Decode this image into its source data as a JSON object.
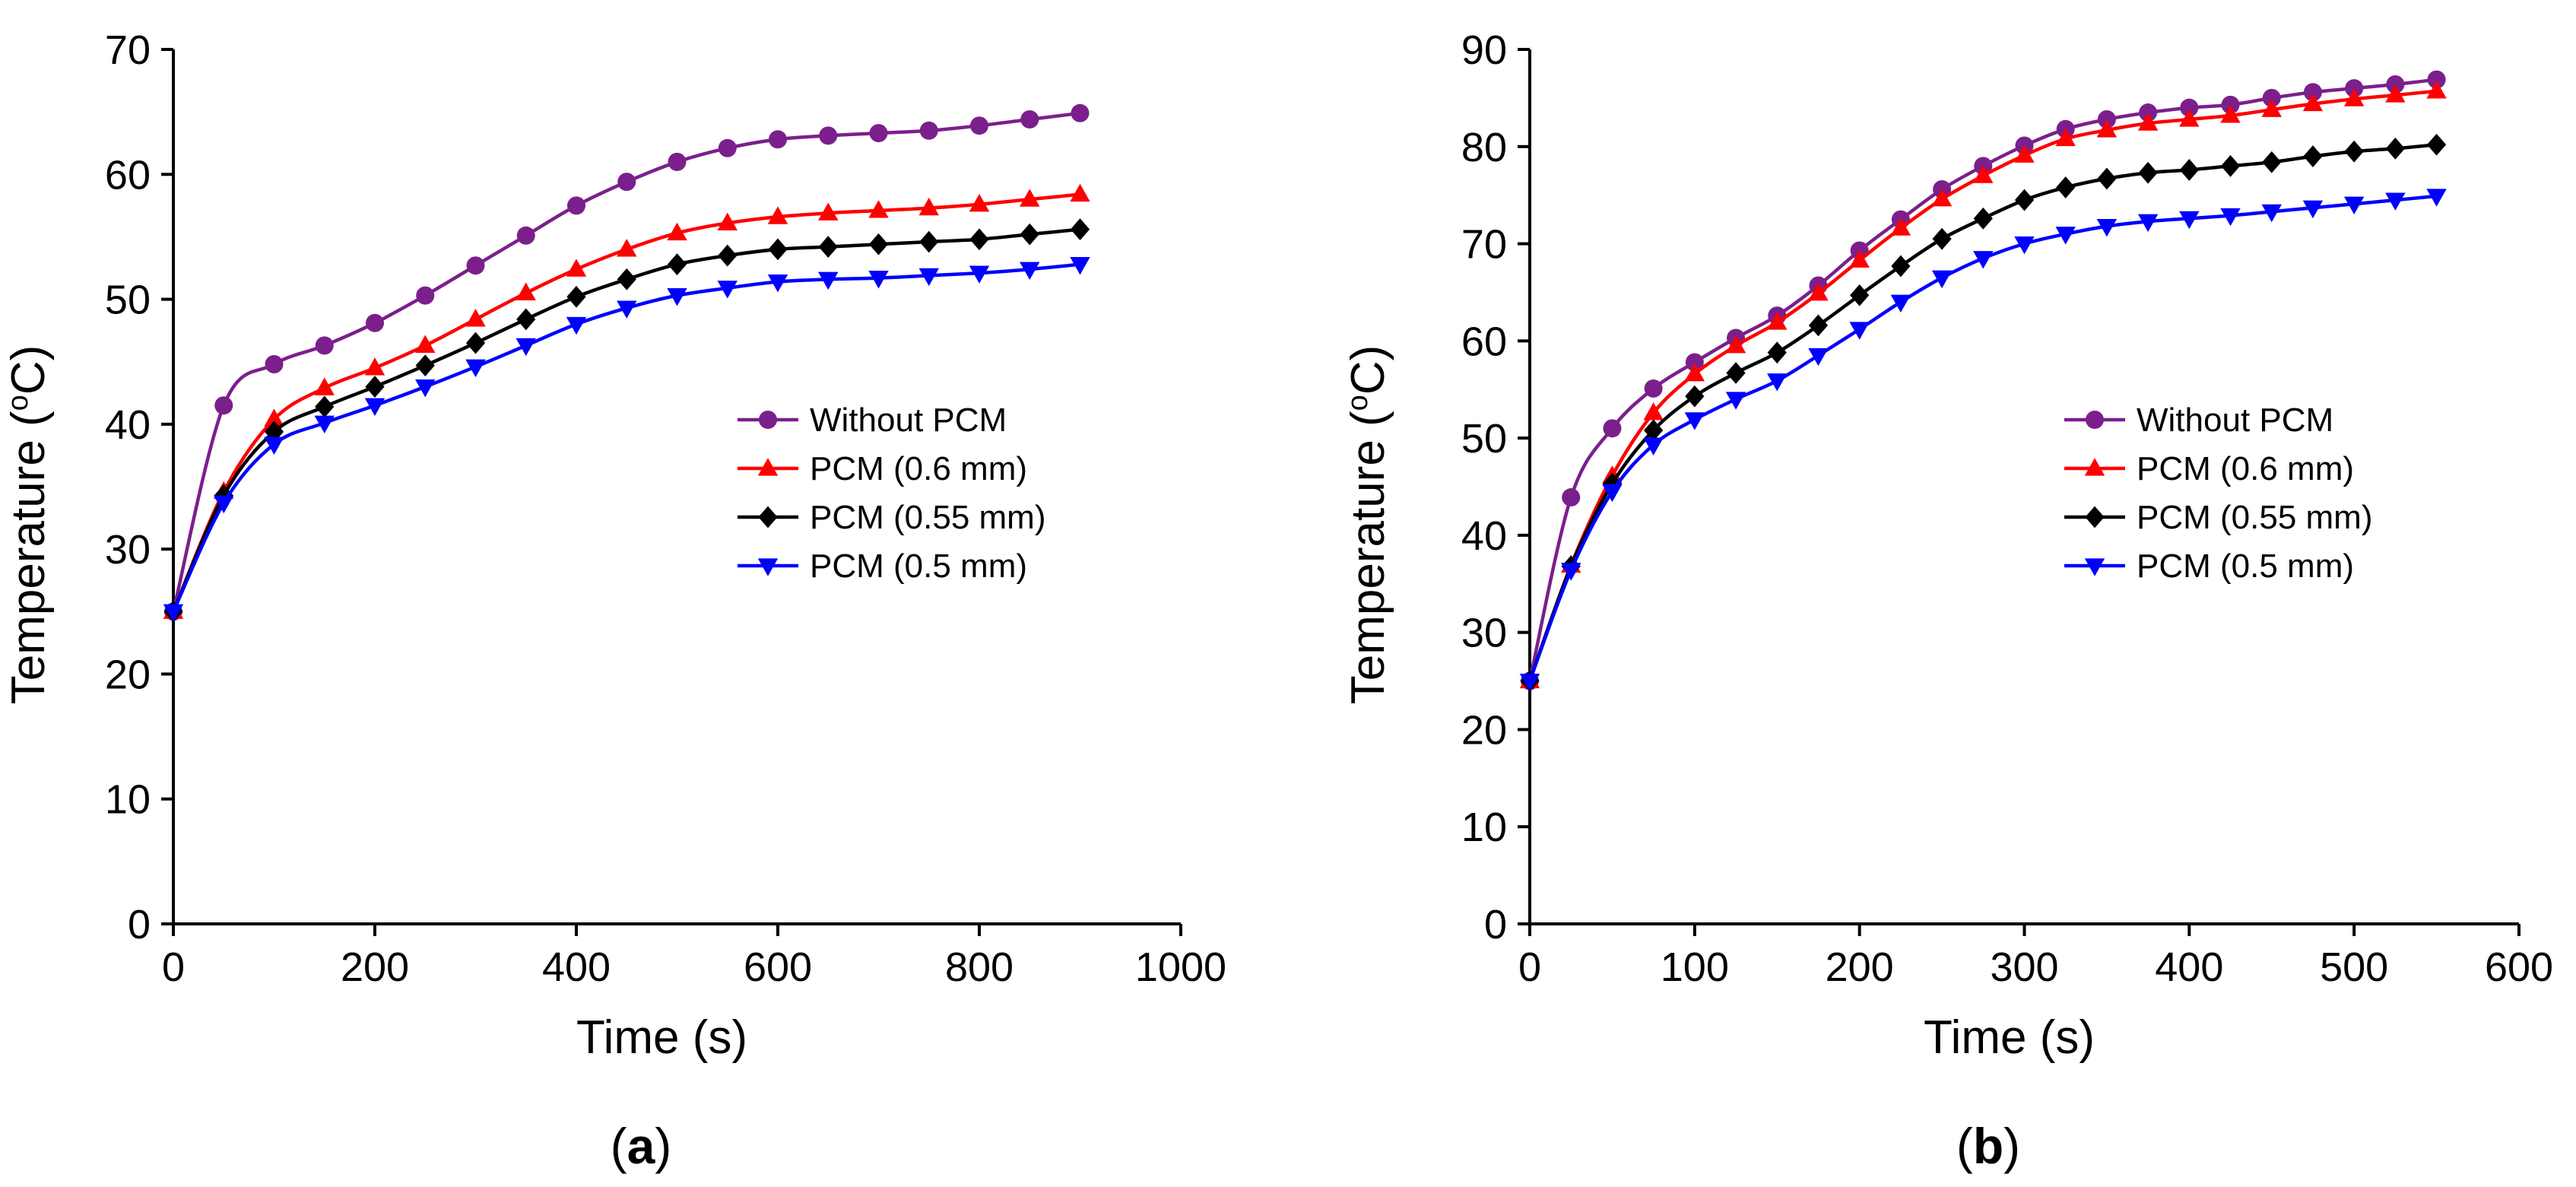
{
  "chart_data": [
    {
      "type": "line",
      "panel_label": "a",
      "title": "",
      "xlabel": "Time (s)",
      "ylabel_prefix": "Temperature (",
      "ylabel_degree": "o",
      "ylabel_suffix": "C)",
      "xlim": [
        0,
        1000
      ],
      "ylim": [
        0,
        70
      ],
      "xticks": [
        0,
        200,
        400,
        600,
        800,
        1000
      ],
      "yticks": [
        0,
        10,
        20,
        30,
        40,
        50,
        60,
        70
      ],
      "grid": false,
      "legend_position": "center-right",
      "x": [
        0,
        50,
        100,
        150,
        200,
        250,
        300,
        350,
        400,
        450,
        500,
        550,
        600,
        650,
        700,
        750,
        800,
        850,
        900
      ],
      "series": [
        {
          "name": "Without PCM",
          "color": "#7b1f8c",
          "marker": "circle",
          "values": [
            25,
            41.5,
            44.8,
            46.3,
            48.1,
            50.3,
            52.7,
            55.1,
            57.5,
            59.4,
            61.0,
            62.1,
            62.8,
            63.1,
            63.3,
            63.5,
            63.9,
            64.4,
            64.9
          ]
        },
        {
          "name": "PCM (0.6 mm)",
          "color": "#ff0000",
          "marker": "triangle-up",
          "values": [
            25,
            34.6,
            40.4,
            42.9,
            44.5,
            46.3,
            48.4,
            50.5,
            52.4,
            54.0,
            55.3,
            56.1,
            56.6,
            56.9,
            57.1,
            57.3,
            57.6,
            58.0,
            58.4
          ]
        },
        {
          "name": "PCM (0.55 mm)",
          "color": "#000000",
          "marker": "diamond",
          "values": [
            25,
            34.3,
            39.4,
            41.4,
            43.0,
            44.7,
            46.5,
            48.4,
            50.2,
            51.6,
            52.8,
            53.5,
            54.0,
            54.2,
            54.4,
            54.6,
            54.8,
            55.2,
            55.6
          ]
        },
        {
          "name": "PCM (0.5 mm)",
          "color": "#0000ff",
          "marker": "triangle-down",
          "values": [
            25,
            33.7,
            38.4,
            40.1,
            41.5,
            43.0,
            44.6,
            46.3,
            48.0,
            49.3,
            50.3,
            50.9,
            51.4,
            51.6,
            51.7,
            51.9,
            52.1,
            52.4,
            52.8
          ]
        }
      ]
    },
    {
      "type": "line",
      "panel_label": "b",
      "title": "",
      "xlabel": "Time (s)",
      "ylabel_prefix": "Temperature (",
      "ylabel_degree": "o",
      "ylabel_suffix": "C)",
      "xlim": [
        0,
        600
      ],
      "ylim": [
        0,
        90
      ],
      "xticks": [
        0,
        100,
        200,
        300,
        400,
        500,
        600
      ],
      "yticks": [
        0,
        10,
        20,
        30,
        40,
        50,
        60,
        70,
        80,
        90
      ],
      "grid": false,
      "legend_position": "center-right",
      "x": [
        0,
        25,
        50,
        75,
        100,
        125,
        150,
        175,
        200,
        225,
        250,
        275,
        300,
        325,
        350,
        375,
        400,
        425,
        450,
        475,
        500,
        525,
        550
      ],
      "series": [
        {
          "name": "Without PCM",
          "color": "#7b1f8c",
          "marker": "circle",
          "values": [
            25,
            43.9,
            51.0,
            55.1,
            57.8,
            60.3,
            62.6,
            65.7,
            69.3,
            72.5,
            75.6,
            78.0,
            80.1,
            81.8,
            82.8,
            83.5,
            84.0,
            84.3,
            85.0,
            85.6,
            86.0,
            86.4,
            86.9
          ]
        },
        {
          "name": "PCM (0.6 mm)",
          "color": "#ff0000",
          "marker": "triangle-up",
          "values": [
            25,
            36.9,
            46.1,
            52.6,
            56.6,
            59.5,
            61.9,
            64.9,
            68.3,
            71.6,
            74.6,
            77.0,
            79.1,
            80.8,
            81.7,
            82.4,
            82.8,
            83.2,
            83.8,
            84.4,
            84.9,
            85.3,
            85.7
          ]
        },
        {
          "name": "PCM (0.55 mm)",
          "color": "#000000",
          "marker": "diamond",
          "values": [
            25,
            36.8,
            45.3,
            50.8,
            54.3,
            56.7,
            58.8,
            61.6,
            64.7,
            67.7,
            70.5,
            72.6,
            74.5,
            75.8,
            76.7,
            77.3,
            77.6,
            78.0,
            78.4,
            79.0,
            79.5,
            79.8,
            80.2
          ]
        },
        {
          "name": "PCM (0.5 mm)",
          "color": "#0000ff",
          "marker": "triangle-down",
          "values": [
            25,
            36.4,
            44.5,
            49.3,
            51.9,
            54.0,
            55.9,
            58.5,
            61.2,
            64.0,
            66.5,
            68.5,
            70.0,
            71.0,
            71.8,
            72.3,
            72.6,
            72.9,
            73.3,
            73.7,
            74.1,
            74.5,
            74.9
          ]
        }
      ]
    }
  ],
  "panel_labels": [
    {
      "open": "(",
      "letter": "a",
      "close": ")"
    },
    {
      "open": "(",
      "letter": "b",
      "close": ")"
    }
  ]
}
